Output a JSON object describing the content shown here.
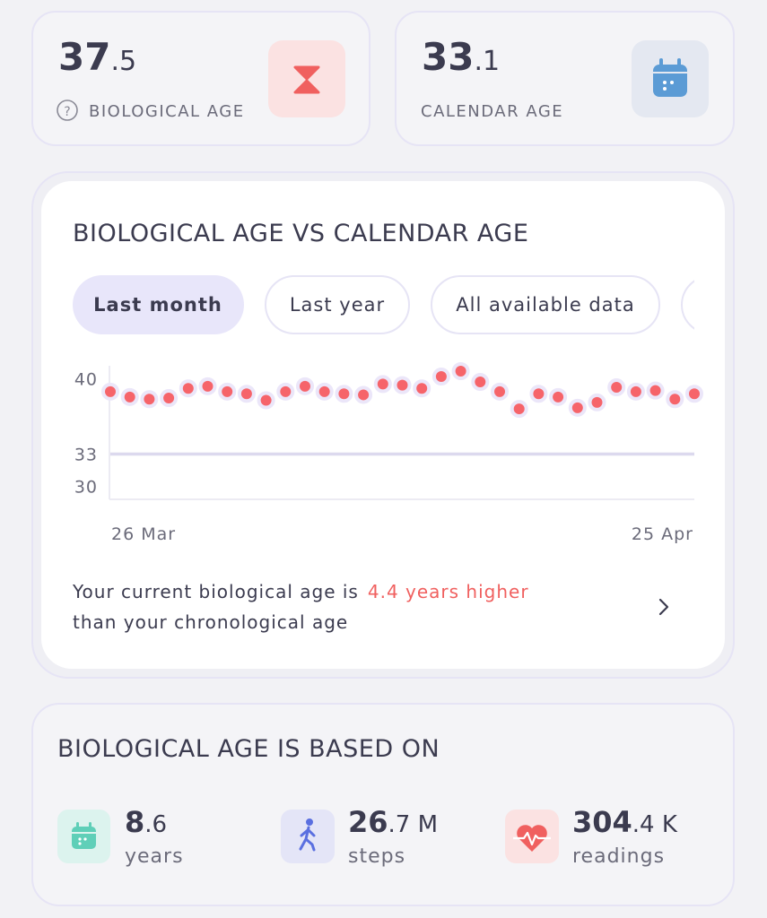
{
  "cards": [
    {
      "value": "37",
      "decimal": ".5",
      "label": "BIOLOGICAL AGE"
    },
    {
      "value": "33",
      "decimal": ".1",
      "label": "CALENDAR AGE"
    }
  ],
  "comparison": {
    "title": "BIOLOGICAL AGE VS CALENDAR AGE",
    "tabs": [
      "Last month",
      "Last year",
      "All available data"
    ],
    "summary_prefix": "Your current biological age is",
    "summary_highlight": "4.4 years higher",
    "summary_suffix": "than your chronological age"
  },
  "chart_data": {
    "type": "line",
    "categories": [
      "26 Mar",
      null,
      null,
      null,
      null,
      null,
      null,
      null,
      null,
      null,
      null,
      null,
      null,
      null,
      null,
      null,
      null,
      null,
      null,
      null,
      null,
      null,
      null,
      null,
      null,
      null,
      null,
      null,
      null,
      null,
      "25 Apr"
    ],
    "series": [
      {
        "color": "#f6646a",
        "marker": "dot",
        "values": [
          38.8,
          38.3,
          38.1,
          38.2,
          39.1,
          39.3,
          38.8,
          38.6,
          38.0,
          38.8,
          39.3,
          38.8,
          38.6,
          38.5,
          39.5,
          39.4,
          39.1,
          40.2,
          40.7,
          39.7,
          38.8,
          37.2,
          38.6,
          38.3,
          37.3,
          37.8,
          39.2,
          38.8,
          38.9,
          38.1,
          38.6
        ]
      },
      {
        "color": "#dcd9ee",
        "marker": "line",
        "values": [
          33,
          33,
          33,
          33,
          33,
          33,
          33,
          33,
          33,
          33,
          33,
          33,
          33,
          33,
          33,
          33,
          33,
          33,
          33,
          33,
          33,
          33,
          33,
          33,
          33,
          33,
          33,
          33,
          33,
          33,
          33
        ]
      }
    ],
    "ylim": [
      28.8,
      41.2
    ],
    "yticks": [
      30,
      33,
      40
    ],
    "grid": false
  },
  "based_on": {
    "title": "BIOLOGICAL AGE IS BASED ON",
    "items": [
      {
        "value": "8",
        "decimal": ".6",
        "unit": "years"
      },
      {
        "value": "26",
        "decimal": ".7 M",
        "unit": "steps"
      },
      {
        "value": "304",
        "decimal": ".4 K",
        "unit": "readings"
      }
    ]
  }
}
